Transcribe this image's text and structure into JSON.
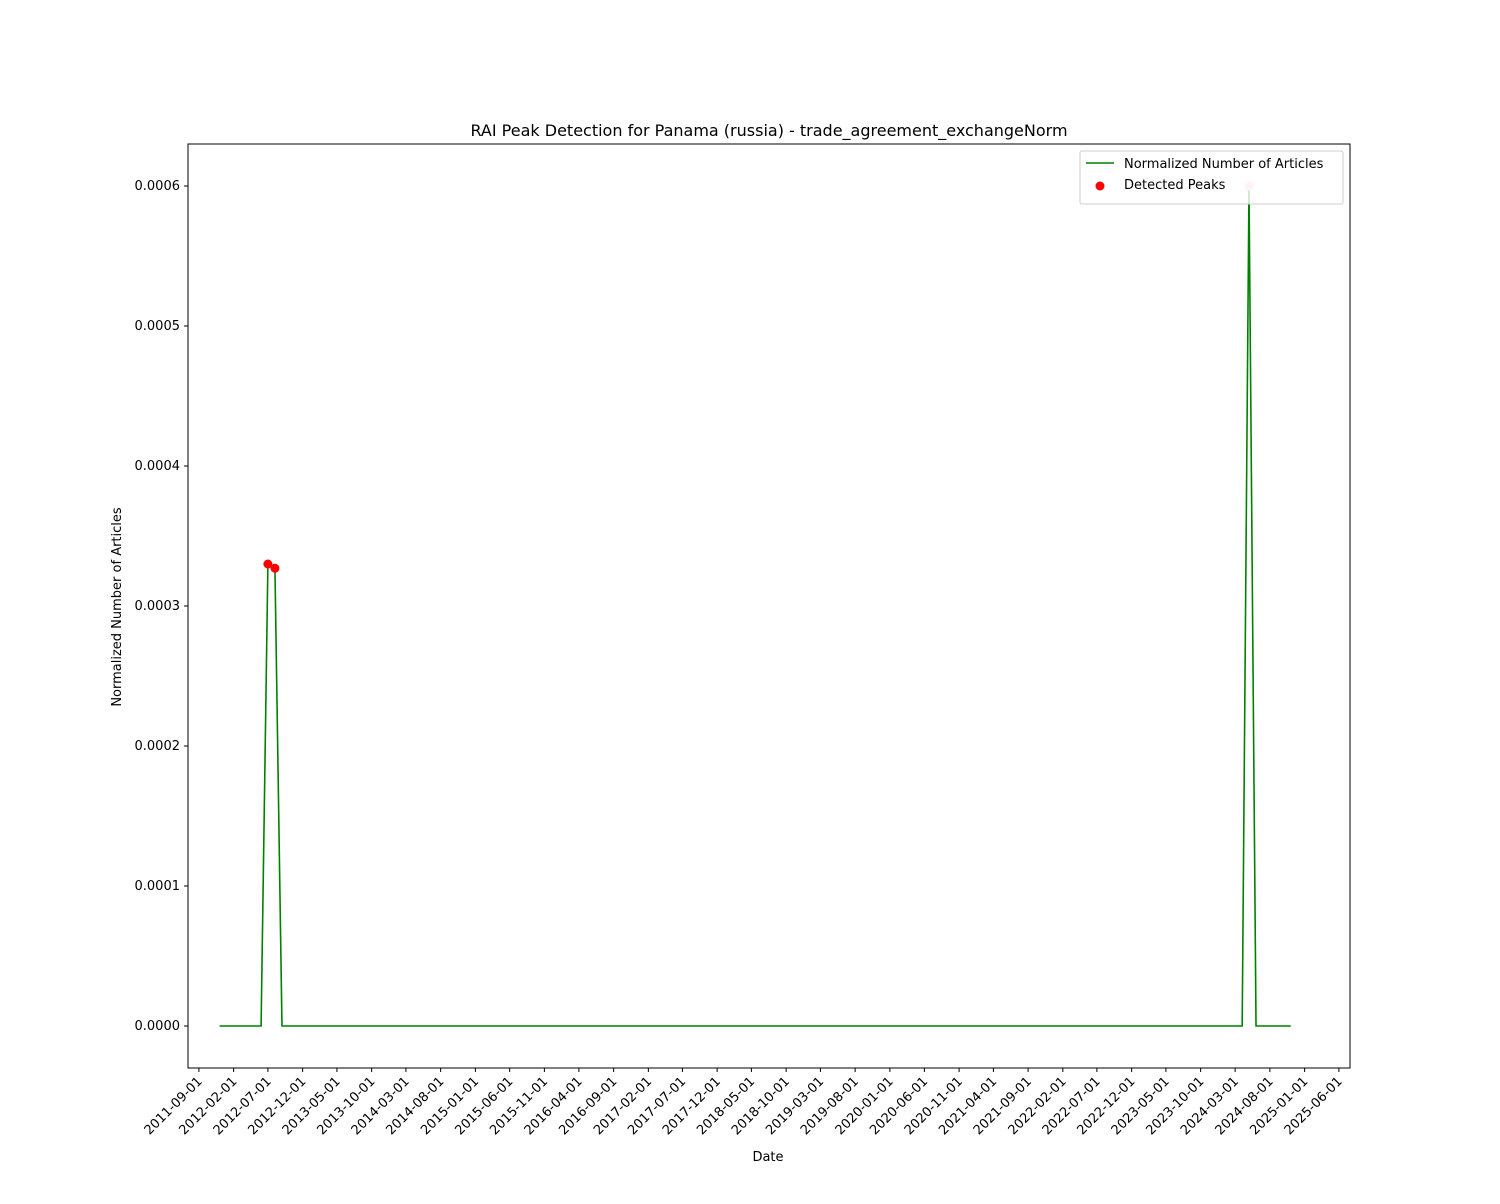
{
  "chart_data": {
    "type": "line",
    "title": "RAI Peak Detection for Panama (russia) - trade_agreement_exchangeNorm",
    "xlabel": "Date",
    "ylabel": "Normalized Number of Articles",
    "x_range": [
      "2011-07-15",
      "2025-07-20"
    ],
    "ylim": [
      -3e-05,
      0.00063
    ],
    "y_ticks": [
      0.0,
      0.0001,
      0.0002,
      0.0003,
      0.0004,
      0.0005,
      0.0006
    ],
    "y_tick_labels": [
      "0.0000",
      "0.0001",
      "0.0002",
      "0.0003",
      "0.0004",
      "0.0005",
      "0.0006"
    ],
    "x_ticks": [
      "2011-09-01",
      "2012-02-01",
      "2012-07-01",
      "2012-12-01",
      "2013-05-01",
      "2013-10-01",
      "2014-03-01",
      "2014-08-01",
      "2015-01-01",
      "2015-06-01",
      "2015-11-01",
      "2016-04-01",
      "2016-09-01",
      "2017-02-01",
      "2017-07-01",
      "2017-12-01",
      "2018-05-01",
      "2018-10-01",
      "2019-03-01",
      "2019-08-01",
      "2020-01-01",
      "2020-06-01",
      "2020-11-01",
      "2021-04-01",
      "2021-09-01",
      "2022-02-01",
      "2022-07-01",
      "2022-12-01",
      "2023-05-01",
      "2023-10-01",
      "2024-03-01",
      "2024-08-01",
      "2025-01-01",
      "2025-06-01"
    ],
    "grid": false,
    "legend_position": "top-right",
    "series": [
      {
        "name": "Normalized Number of Articles",
        "kind": "line",
        "color": "#008000",
        "points": [
          {
            "x": "2011-12-01",
            "y": 0.0
          },
          {
            "x": "2012-06-01",
            "y": 0.0
          },
          {
            "x": "2012-07-01",
            "y": 0.00033
          },
          {
            "x": "2012-08-01",
            "y": 0.000327
          },
          {
            "x": "2012-09-01",
            "y": 0.0
          },
          {
            "x": "2024-04-01",
            "y": 0.0
          },
          {
            "x": "2024-05-01",
            "y": 0.0006
          },
          {
            "x": "2024-06-01",
            "y": 0.0
          },
          {
            "x": "2024-11-01",
            "y": 0.0
          }
        ]
      },
      {
        "name": "Detected Peaks",
        "kind": "scatter",
        "color": "#ff0000",
        "points": [
          {
            "x": "2012-07-01",
            "y": 0.00033,
            "color": "#ff0000"
          },
          {
            "x": "2012-08-01",
            "y": 0.000327,
            "color": "#ff0000"
          },
          {
            "x": "2024-05-01",
            "y": 0.0006,
            "color": "#ffc0cb"
          }
        ]
      }
    ]
  }
}
